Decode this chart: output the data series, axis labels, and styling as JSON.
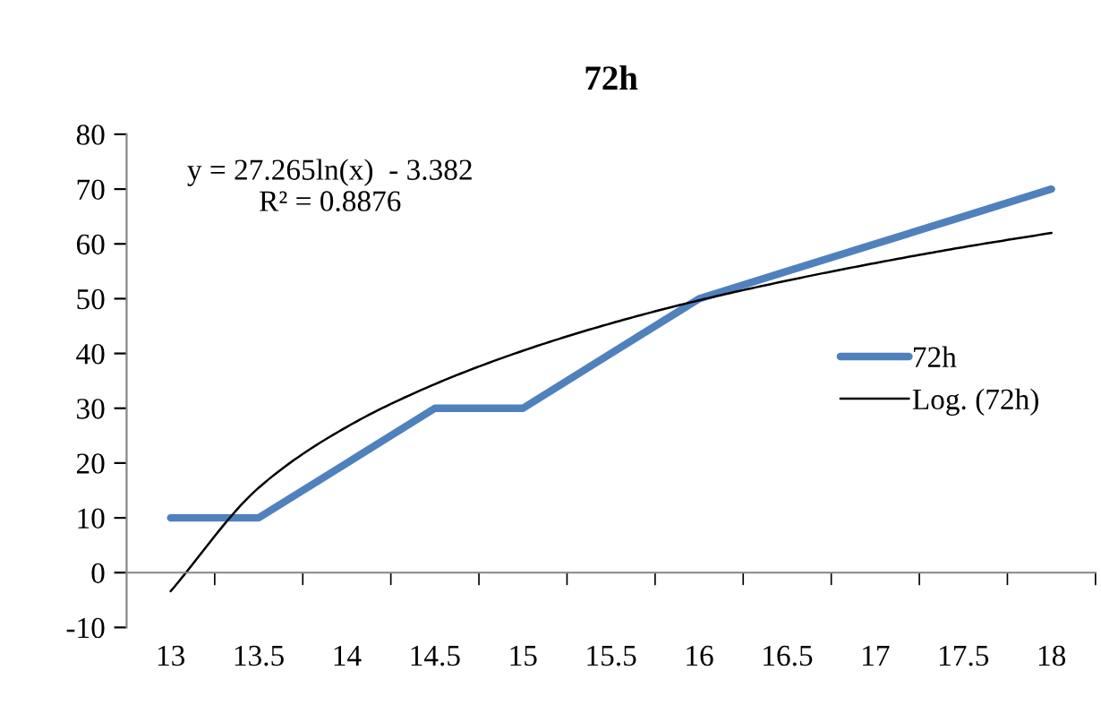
{
  "chart_data": {
    "type": "line",
    "title": "72h",
    "categories": [
      "13",
      "13.5",
      "14",
      "14.5",
      "15",
      "15.5",
      "16",
      "16.5",
      "17",
      "17.5",
      "18"
    ],
    "series": [
      {
        "name": "72h",
        "color": "#4f81bd",
        "values": [
          10,
          10,
          20,
          30,
          30,
          40,
          50,
          55,
          60,
          65,
          70
        ]
      },
      {
        "name": "Log. (72h)",
        "color": "#000000",
        "type": "line",
        "x": [
          "13",
          "13.5",
          "14",
          "14.5",
          "15",
          "15.5",
          "16",
          "16.5",
          "17",
          "17.5",
          "18"
        ],
        "values": [
          -3.4,
          15.5,
          26.6,
          34.4,
          40.5,
          45.5,
          49.7,
          53.3,
          56.5,
          59.4,
          62.0
        ]
      }
    ],
    "annotations": [
      "y = 27.265ln(x)  - 3.382\nR² = 0.8876"
    ],
    "ylim": [
      -10,
      80
    ],
    "yticks": [
      -10,
      0,
      10,
      20,
      30,
      40,
      50,
      60,
      70,
      80
    ],
    "grid": false,
    "legend": "right",
    "marker": "none",
    "line_style": "solid"
  }
}
